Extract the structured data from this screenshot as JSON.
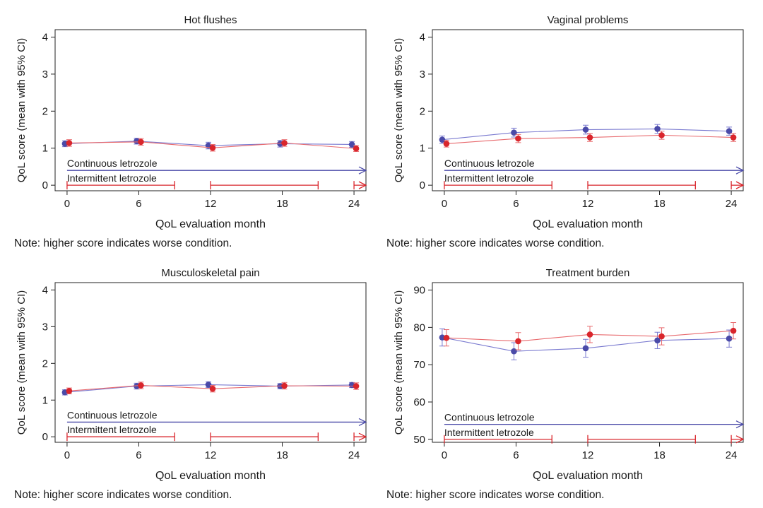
{
  "colors": {
    "continuous": "#4a4aa8",
    "intermittent": "#d9262c",
    "continuous_line": "#7a7ad0",
    "intermittent_line": "#e86a6e",
    "axis": "#222222"
  },
  "chart_data": [
    {
      "type": "line",
      "title": "Hot flushes",
      "xlabel": "QoL evaluation month",
      "ylabel": "QoL score (mean with 95% CI)",
      "x": [
        0,
        6,
        12,
        18,
        24
      ],
      "xticks": [
        "0",
        "6",
        "12",
        "18",
        "24"
      ],
      "xlim": [
        -1,
        25
      ],
      "ylim": [
        -0.15,
        4.2
      ],
      "yticks": [
        0,
        1,
        2,
        3,
        4
      ],
      "series": [
        {
          "name": "Continuous letrozole",
          "values": [
            1.12,
            1.19,
            1.07,
            1.12,
            1.1
          ],
          "ci_low": [
            1.04,
            1.11,
            0.98,
            1.03,
            1.02
          ],
          "ci_high": [
            1.2,
            1.27,
            1.16,
            1.21,
            1.18
          ]
        },
        {
          "name": "Intermittent letrozole",
          "values": [
            1.14,
            1.17,
            1.01,
            1.14,
            0.99
          ],
          "ci_low": [
            1.05,
            1.08,
            0.92,
            1.05,
            0.91
          ],
          "ci_high": [
            1.23,
            1.26,
            1.1,
            1.23,
            1.07
          ]
        }
      ],
      "annotations": {
        "continuous_label": "Continuous letrozole",
        "intermittent_label": "Intermittent letrozole",
        "continuous_value": 0.4,
        "intermittent_value": 0.0,
        "intermittent_periods": [
          [
            0,
            9
          ],
          [
            12,
            21
          ],
          [
            24,
            25
          ]
        ]
      },
      "note": "Note: higher score indicates worse condition."
    },
    {
      "type": "line",
      "title": "Vaginal problems",
      "xlabel": "QoL evaluation month",
      "ylabel": "QoL score (mean with 95% CI)",
      "x": [
        0,
        6,
        12,
        18,
        24
      ],
      "xticks": [
        "0",
        "6",
        "12",
        "18",
        "24"
      ],
      "xlim": [
        -1,
        25
      ],
      "ylim": [
        -0.15,
        4.2
      ],
      "yticks": [
        0,
        1,
        2,
        3,
        4
      ],
      "series": [
        {
          "name": "Continuous letrozole",
          "values": [
            1.23,
            1.42,
            1.5,
            1.52,
            1.46
          ],
          "ci_low": [
            1.13,
            1.3,
            1.38,
            1.4,
            1.35
          ],
          "ci_high": [
            1.33,
            1.54,
            1.62,
            1.64,
            1.57
          ]
        },
        {
          "name": "Intermittent letrozole",
          "values": [
            1.12,
            1.26,
            1.29,
            1.35,
            1.29
          ],
          "ci_low": [
            1.03,
            1.15,
            1.18,
            1.24,
            1.18
          ],
          "ci_high": [
            1.21,
            1.37,
            1.4,
            1.46,
            1.4
          ]
        }
      ],
      "annotations": {
        "continuous_label": "Continuous letrozole",
        "intermittent_label": "Intermittent letrozole",
        "continuous_value": 0.4,
        "intermittent_value": 0.0,
        "intermittent_periods": [
          [
            0,
            9
          ],
          [
            12,
            21
          ],
          [
            24,
            25
          ]
        ]
      },
      "note": "Note: higher score indicates worse condition."
    },
    {
      "type": "line",
      "title": "Musculoskeletal pain",
      "xlabel": "QoL evaluation month",
      "ylabel": "QoL score (mean with 95% CI)",
      "x": [
        0,
        6,
        12,
        18,
        24
      ],
      "xticks": [
        "0",
        "6",
        "12",
        "18",
        "24"
      ],
      "xlim": [
        -1,
        25
      ],
      "ylim": [
        -0.15,
        4.2
      ],
      "yticks": [
        0,
        1,
        2,
        3,
        4
      ],
      "series": [
        {
          "name": "Continuous letrozole",
          "values": [
            1.21,
            1.38,
            1.42,
            1.38,
            1.41
          ],
          "ci_low": [
            1.14,
            1.3,
            1.34,
            1.31,
            1.34
          ],
          "ci_high": [
            1.28,
            1.46,
            1.5,
            1.45,
            1.48
          ]
        },
        {
          "name": "Intermittent letrozole",
          "values": [
            1.25,
            1.4,
            1.31,
            1.39,
            1.38
          ],
          "ci_low": [
            1.17,
            1.31,
            1.22,
            1.3,
            1.29
          ],
          "ci_high": [
            1.33,
            1.49,
            1.4,
            1.48,
            1.47
          ]
        }
      ],
      "annotations": {
        "continuous_label": "Continuous letrozole",
        "intermittent_label": "Intermittent letrozole",
        "continuous_value": 0.4,
        "intermittent_value": 0.0,
        "intermittent_periods": [
          [
            0,
            9
          ],
          [
            12,
            21
          ],
          [
            24,
            25
          ]
        ]
      },
      "note": "Note: higher score indicates worse condition."
    },
    {
      "type": "line",
      "title": "Treatment burden",
      "xlabel": "QoL evaluation month",
      "ylabel": "QoL score (mean with 95% CI)",
      "x": [
        0,
        6,
        12,
        18,
        24
      ],
      "xticks": [
        "0",
        "6",
        "12",
        "18",
        "24"
      ],
      "xlim": [
        -1,
        25
      ],
      "ylim": [
        49.2,
        92
      ],
      "yticks": [
        50,
        60,
        70,
        80,
        90
      ],
      "series": [
        {
          "name": "Continuous letrozole",
          "values": [
            77.3,
            73.6,
            74.4,
            76.5,
            77.0
          ],
          "ci_low": [
            75.0,
            71.3,
            72.0,
            74.3,
            74.7
          ],
          "ci_high": [
            79.6,
            75.9,
            76.8,
            78.7,
            79.3
          ]
        },
        {
          "name": "Intermittent letrozole",
          "values": [
            77.2,
            76.3,
            78.1,
            77.6,
            79.1
          ],
          "ci_low": [
            75.0,
            74.0,
            75.9,
            75.3,
            76.9
          ],
          "ci_high": [
            79.4,
            78.6,
            80.3,
            79.9,
            81.3
          ]
        }
      ],
      "annotations": {
        "continuous_label": "Continuous letrozole",
        "intermittent_label": "Intermittent letrozole",
        "continuous_value": 54.0,
        "intermittent_value": 50.0,
        "intermittent_periods": [
          [
            0,
            9
          ],
          [
            12,
            21
          ],
          [
            24,
            25
          ]
        ]
      },
      "note": "Note: higher score indicates worse condition."
    }
  ]
}
